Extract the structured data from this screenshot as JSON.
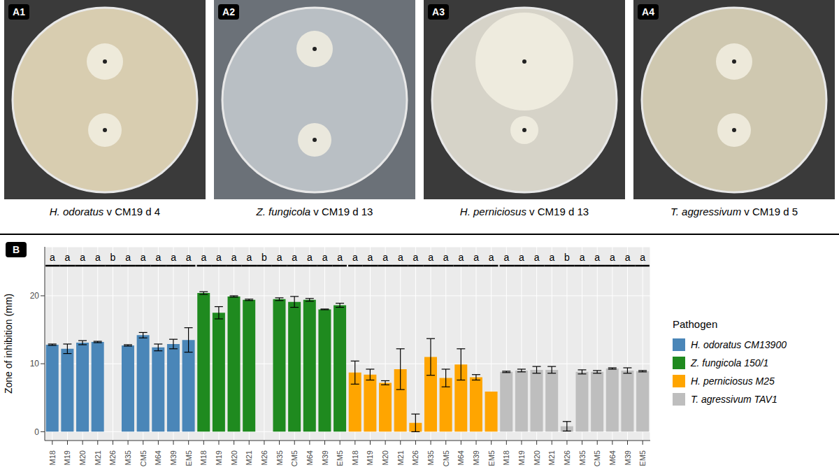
{
  "photo_panels": [
    {
      "letter": "A1",
      "caption": "H. odoratus v CM19 d 4"
    },
    {
      "letter": "A2",
      "caption": "Z. fungicola v CM19 d 13"
    },
    {
      "letter": "A3",
      "caption": "H. perniciosus v CM19 d 13"
    },
    {
      "letter": "A4",
      "caption": "T. aggressivum v CM19 d 5"
    }
  ],
  "chart_data": {
    "type": "bar",
    "panel": "B",
    "y_label": "Zone of inhibition (mm)",
    "legend_title": "Pathogen",
    "legend": "right",
    "grid": true,
    "ylim": [
      -1.3,
      27.2
    ],
    "yticks": [
      0,
      10,
      20
    ],
    "categories": [
      "M18",
      "M19",
      "M20",
      "M21",
      "M26",
      "M35",
      "CM5",
      "M64",
      "M39",
      "EM5",
      "M18",
      "M19",
      "M20",
      "M21",
      "M26",
      "M35",
      "CM5",
      "M64",
      "M39",
      "EM5",
      "M18",
      "M19",
      "M20",
      "M21",
      "M26",
      "M35",
      "CM5",
      "M64",
      "M39",
      "EM5",
      "M18",
      "M19",
      "M20",
      "M21",
      "M26",
      "M35",
      "CM5",
      "M64",
      "M39",
      "EM5"
    ],
    "series": [
      {
        "name": "H. odoratus CM13900",
        "color": "#4a86b8",
        "values": [
          12.8,
          12.2,
          13.1,
          13.2,
          0,
          12.7,
          14.2,
          12.4,
          12.9,
          13.5,
          null,
          null,
          null,
          null,
          null,
          null,
          null,
          null,
          null,
          null,
          null,
          null,
          null,
          null,
          null,
          null,
          null,
          null,
          null,
          null,
          null,
          null,
          null,
          null,
          null,
          null,
          null,
          null,
          null,
          null
        ],
        "errors": [
          0.1,
          0.7,
          0.3,
          0.1,
          0,
          0.1,
          0.4,
          0.5,
          0.7,
          1.8,
          null,
          null,
          null,
          null,
          null,
          null,
          null,
          null,
          null,
          null,
          null,
          null,
          null,
          null,
          null,
          null,
          null,
          null,
          null,
          null,
          null,
          null,
          null,
          null,
          null,
          null,
          null,
          null,
          null,
          null
        ],
        "significance_letters": [
          "a",
          "a",
          "a",
          "a",
          "b",
          "a",
          "a",
          "a",
          "a",
          "a",
          null,
          null,
          null,
          null,
          null,
          null,
          null,
          null,
          null,
          null,
          null,
          null,
          null,
          null,
          null,
          null,
          null,
          null,
          null,
          null,
          null,
          null,
          null,
          null,
          null,
          null,
          null,
          null,
          null,
          null
        ]
      },
      {
        "name": "Z. fungicola 150/1",
        "color": "#1f8a1f",
        "values": [
          null,
          null,
          null,
          null,
          null,
          null,
          null,
          null,
          null,
          null,
          20.4,
          17.5,
          19.9,
          19.4,
          0,
          19.5,
          19.1,
          19.4,
          18.0,
          18.6,
          null,
          null,
          null,
          null,
          null,
          null,
          null,
          null,
          null,
          null,
          null,
          null,
          null,
          null,
          null,
          null,
          null,
          null,
          null,
          null
        ],
        "errors": [
          null,
          null,
          null,
          null,
          null,
          null,
          null,
          null,
          null,
          null,
          0.2,
          0.9,
          0.1,
          0.1,
          0,
          0.2,
          0.8,
          0.2,
          0.05,
          0.3,
          null,
          null,
          null,
          null,
          null,
          null,
          null,
          null,
          null,
          null,
          null,
          null,
          null,
          null,
          null,
          null,
          null,
          null,
          null,
          null
        ],
        "significance_letters": [
          null,
          null,
          null,
          null,
          null,
          null,
          null,
          null,
          null,
          null,
          "a",
          "a",
          "a",
          "a",
          "b",
          "a",
          "a",
          "a",
          "a",
          "a",
          null,
          null,
          null,
          null,
          null,
          null,
          null,
          null,
          null,
          null,
          null,
          null,
          null,
          null,
          null,
          null,
          null,
          null,
          null,
          null
        ]
      },
      {
        "name": "H. perniciosus M25",
        "color": "#ffa500",
        "values": [
          null,
          null,
          null,
          null,
          null,
          null,
          null,
          null,
          null,
          null,
          null,
          null,
          null,
          null,
          null,
          null,
          null,
          null,
          null,
          null,
          8.7,
          8.4,
          7.2,
          9.2,
          1.3,
          11.0,
          7.9,
          9.9,
          8.0,
          5.9,
          null,
          null,
          null,
          null,
          null,
          null,
          null,
          null,
          null,
          null
        ],
        "errors": [
          null,
          null,
          null,
          null,
          null,
          null,
          null,
          null,
          null,
          null,
          null,
          null,
          null,
          null,
          null,
          null,
          null,
          null,
          null,
          null,
          1.7,
          0.8,
          0.3,
          3.0,
          1.3,
          2.7,
          1.3,
          2.3,
          0.4,
          0,
          null,
          null,
          null,
          null,
          null,
          null,
          null,
          null,
          null,
          null
        ],
        "significance_letters": [
          null,
          null,
          null,
          null,
          null,
          null,
          null,
          null,
          null,
          null,
          null,
          null,
          null,
          null,
          null,
          null,
          null,
          null,
          null,
          null,
          "a",
          "a",
          "a",
          "a",
          "a",
          "a",
          "a",
          "a",
          "a",
          "a",
          null,
          null,
          null,
          null,
          null,
          null,
          null,
          null,
          null,
          null
        ]
      },
      {
        "name": "T. agressivum TAV1",
        "color": "#bebebe",
        "values": [
          null,
          null,
          null,
          null,
          null,
          null,
          null,
          null,
          null,
          null,
          null,
          null,
          null,
          null,
          null,
          null,
          null,
          null,
          null,
          null,
          null,
          null,
          null,
          null,
          null,
          null,
          null,
          null,
          null,
          null,
          8.8,
          9.0,
          9.1,
          9.1,
          0.8,
          8.8,
          8.8,
          9.3,
          9.0,
          8.9
        ],
        "errors": [
          null,
          null,
          null,
          null,
          null,
          null,
          null,
          null,
          null,
          null,
          null,
          null,
          null,
          null,
          null,
          null,
          null,
          null,
          null,
          null,
          null,
          null,
          null,
          null,
          null,
          null,
          null,
          null,
          null,
          null,
          0.1,
          0.2,
          0.5,
          0.5,
          0.7,
          0.3,
          0.2,
          0.1,
          0.4,
          0.1
        ],
        "significance_letters": [
          null,
          null,
          null,
          null,
          null,
          null,
          null,
          null,
          null,
          null,
          null,
          null,
          null,
          null,
          null,
          null,
          null,
          null,
          null,
          null,
          null,
          null,
          null,
          null,
          null,
          null,
          null,
          null,
          null,
          null,
          "a",
          "a",
          "a",
          "a",
          "b",
          "a",
          "a",
          "a",
          "a",
          "a"
        ]
      }
    ]
  }
}
